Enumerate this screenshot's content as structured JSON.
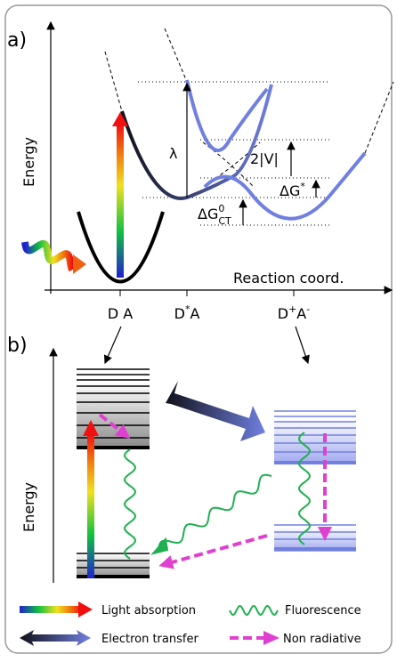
{
  "panel_a": {
    "label": "a)",
    "y_axis": "Energy",
    "x_axis": "Reaction coord.",
    "lambda": "λ",
    "coupling": "2|V|",
    "dg_star": {
      "text": "ΔG",
      "sup": "*"
    },
    "dg_ct": {
      "text": "ΔG",
      "sup": "0",
      "sub": "CT"
    },
    "states": [
      {
        "text": "D A"
      },
      {
        "text": "D",
        "sup": "*",
        "rest": "A"
      },
      {
        "text": "D",
        "sup": "+",
        "rest": "A",
        "sup2": "-"
      }
    ]
  },
  "panel_b": {
    "label": "b)",
    "y_axis": "Energy"
  },
  "legend": [
    "Light absorption",
    "Fluorescence",
    "Electron transfer",
    "Non radiative"
  ]
}
